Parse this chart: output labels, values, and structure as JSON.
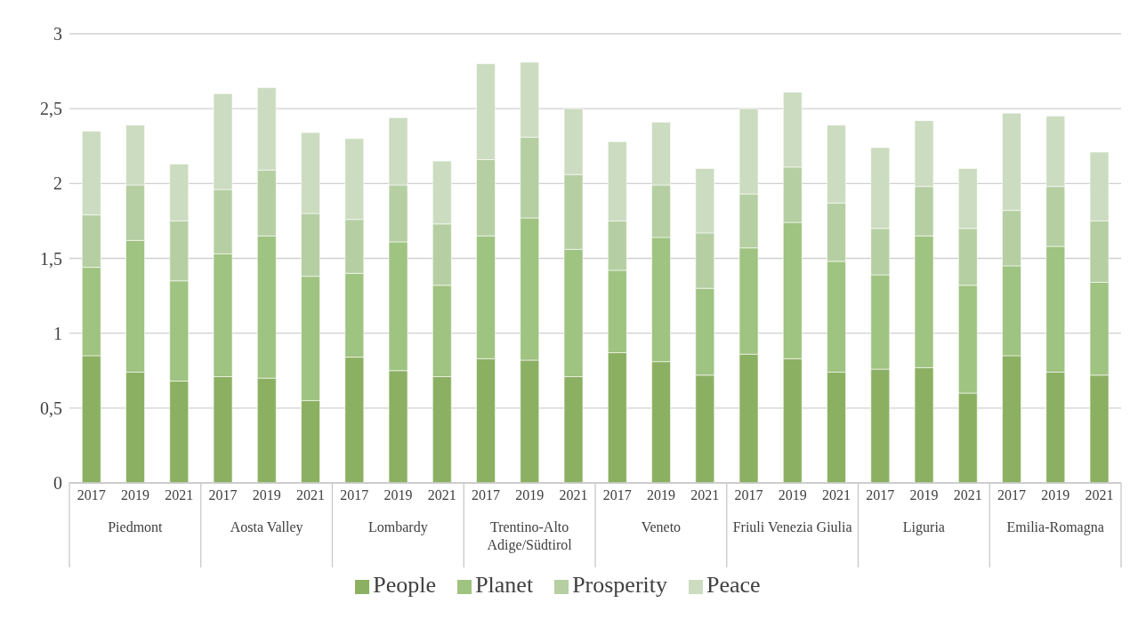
{
  "chart_data": {
    "type": "bar",
    "stacked": true,
    "categories": [
      "2017",
      "2019",
      "2021",
      "2017",
      "2019",
      "2021",
      "2017",
      "2019",
      "2021",
      "2017",
      "2019",
      "2021",
      "2017",
      "2019",
      "2021",
      "2017",
      "2019",
      "2021",
      "2017",
      "2019",
      "2021",
      "2017",
      "2019",
      "2021"
    ],
    "annotations": [
      "Piedmont",
      "Aosta Valley",
      "Lombardy",
      "Trentino-Alto Adige/Südtirol",
      "Veneto",
      "Friuli Venezia Giulia",
      "Liguria",
      "Emilia-Romagna"
    ],
    "series": [
      {
        "name": "People",
        "color": "#8cb062",
        "values": [
          0.85,
          0.74,
          0.68,
          0.71,
          0.7,
          0.55,
          0.84,
          0.75,
          0.71,
          0.83,
          0.82,
          0.71,
          0.87,
          0.81,
          0.72,
          0.86,
          0.83,
          0.74,
          0.76,
          0.77,
          0.6,
          0.85,
          0.74,
          0.72
        ]
      },
      {
        "name": "Planet",
        "color": "#9fc380",
        "values": [
          0.59,
          0.88,
          0.67,
          0.82,
          0.95,
          0.83,
          0.56,
          0.86,
          0.61,
          0.82,
          0.95,
          0.85,
          0.55,
          0.83,
          0.58,
          0.71,
          0.91,
          0.74,
          0.63,
          0.88,
          0.72,
          0.6,
          0.84,
          0.62
        ]
      },
      {
        "name": "Prosperity",
        "color": "#b5cfa2",
        "values": [
          0.35,
          0.37,
          0.4,
          0.43,
          0.44,
          0.42,
          0.36,
          0.38,
          0.41,
          0.51,
          0.54,
          0.5,
          0.33,
          0.35,
          0.37,
          0.36,
          0.37,
          0.39,
          0.31,
          0.33,
          0.38,
          0.37,
          0.4,
          0.41
        ]
      },
      {
        "name": "Peace",
        "color": "#ccdcc0",
        "values": [
          0.56,
          0.4,
          0.38,
          0.64,
          0.55,
          0.54,
          0.54,
          0.45,
          0.42,
          0.64,
          0.5,
          0.44,
          0.53,
          0.42,
          0.43,
          0.57,
          0.5,
          0.52,
          0.54,
          0.44,
          0.4,
          0.65,
          0.47,
          0.46
        ]
      }
    ],
    "ylim": [
      0,
      3
    ],
    "yticks": [
      0,
      {
        "value": 0.5,
        "label": "0,5"
      },
      1,
      {
        "value": 1.5,
        "label": "1,5"
      },
      2,
      {
        "value": 2.5,
        "label": "2,5"
      },
      3
    ],
    "grid": "y",
    "legend": "bottom"
  }
}
